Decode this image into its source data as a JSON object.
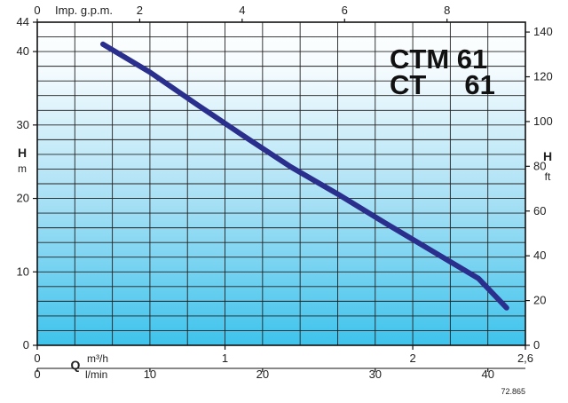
{
  "chart_data": {
    "type": "line",
    "title_lines": [
      "CTM 61",
      "CT     61"
    ],
    "series": [
      {
        "x_m3h": [
          0.35,
          0.6,
          0.85,
          1.1,
          1.35,
          1.6,
          1.85,
          2.1,
          2.35,
          2.5
        ],
        "y_m": [
          41.0,
          37.2,
          32.8,
          28.5,
          24.3,
          20.6,
          16.7,
          12.9,
          9.1,
          5.1
        ]
      }
    ],
    "axes": {
      "left": {
        "label": "H",
        "unit": "m",
        "range": [
          0,
          44
        ],
        "ticks": [
          "0",
          "10",
          "20",
          "30",
          "40",
          "44"
        ]
      },
      "right": {
        "label": "H",
        "unit": "ft",
        "range": [
          0,
          144.4
        ],
        "ticks": [
          "0",
          "20",
          "40",
          "60",
          "80",
          "100",
          "120",
          "140"
        ]
      },
      "top": {
        "label": "Imp. g.p.m.",
        "range": [
          0,
          9.53
        ],
        "ticks": [
          "0",
          "2",
          "4",
          "6",
          "8"
        ]
      },
      "bottom_m3h": {
        "label": "Q",
        "unit": "m³/h",
        "range": [
          0,
          2.6
        ],
        "ticks": [
          "0",
          "1",
          "2",
          "2,6"
        ]
      },
      "bottom_lmin": {
        "unit": "l/min",
        "range": [
          0,
          43.33
        ],
        "ticks": [
          "0",
          "10",
          "20",
          "30",
          "40"
        ]
      }
    },
    "grid": true,
    "code": "72.865",
    "colors": {
      "curve": "#2a2e8c",
      "bg_top": "#ffffff",
      "bg_bottom": "#3ec3ec",
      "grid": "#222222"
    }
  }
}
